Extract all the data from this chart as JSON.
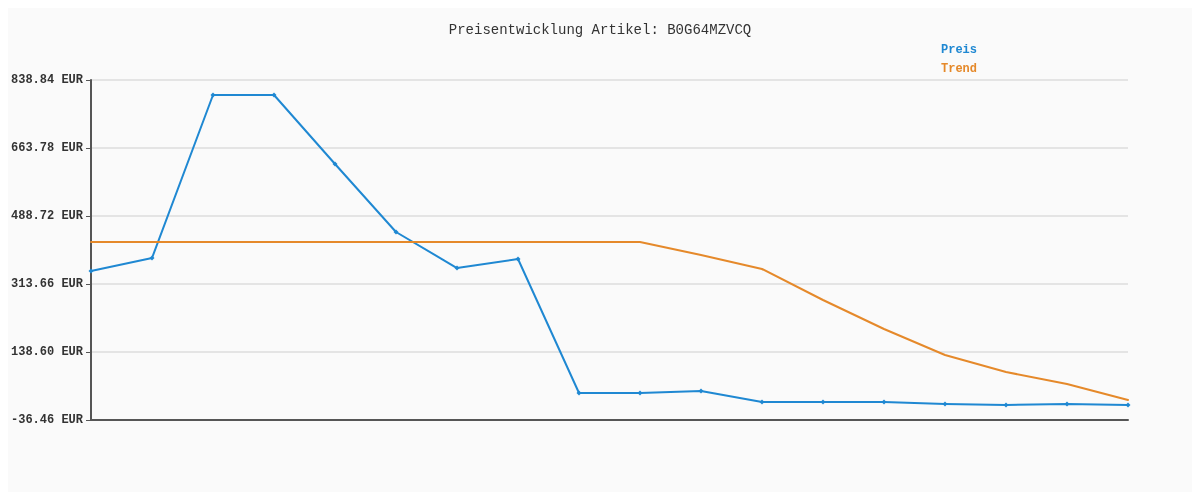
{
  "chart_data": {
    "type": "line",
    "title": "Preisentwicklung Artikel: B0G64MZVCQ",
    "categories": [
      null,
      null,
      null,
      null,
      null,
      null,
      null,
      null,
      null,
      null,
      null,
      null,
      null,
      null,
      null,
      null,
      null,
      null
    ],
    "series": [
      {
        "name": "Preis",
        "color": "#1f88d2",
        "marker": "diamond",
        "values": [
          347.1,
          380.6,
          800.2,
          800.2,
          622.6,
          447.5,
          354.8,
          378.0,
          33.0,
          33.0,
          38.2,
          9.9,
          9.9,
          9.9,
          4.7,
          2.2,
          4.7,
          2.2
        ]
      },
      {
        "name": "Trend",
        "color": "#e5892a",
        "marker": "none",
        "values": [
          421.8,
          421.8,
          421.8,
          421.8,
          421.8,
          421.8,
          421.8,
          421.8,
          421.8,
          421.8,
          388.3,
          352.3,
          272.5,
          197.8,
          130.9,
          87.1,
          56.2,
          15.0
        ]
      }
    ],
    "ylim": [
      -36.46,
      838.84
    ],
    "yticks": [
      {
        "value": -36.46,
        "label": "-36.46 EUR"
      },
      {
        "value": 138.6,
        "label": "138.60 EUR"
      },
      {
        "value": 313.66,
        "label": "313.66 EUR"
      },
      {
        "value": 488.72,
        "label": "488.72 EUR"
      },
      {
        "value": 663.78,
        "label": "663.78 EUR"
      },
      {
        "value": 838.84,
        "label": "838.84 EUR"
      }
    ],
    "grid": "y",
    "legend": "top right",
    "line_style": "solid"
  }
}
